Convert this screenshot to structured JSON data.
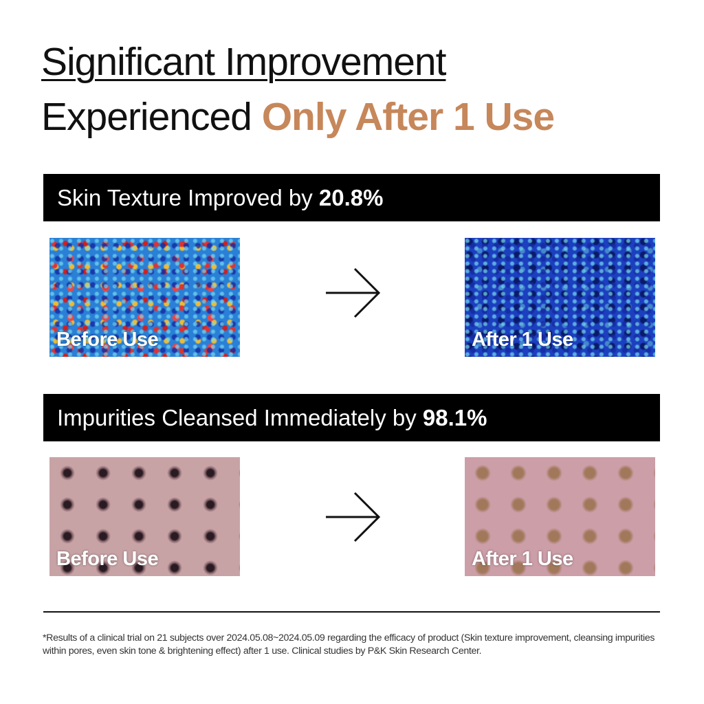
{
  "headline": {
    "line1": "Significant Improvement",
    "line2_prefix": "Experienced ",
    "line2_accent": "Only After 1 Use",
    "accent_color": "#c6875a"
  },
  "sections": [
    {
      "banner_text": "Skin Texture Improved by ",
      "banner_value": "20.8%",
      "before_label": "Before Use",
      "after_label": "After 1 Use",
      "arrow_icon": "arrow-right-icon"
    },
    {
      "banner_text": "Impurities Cleansed Immediately by ",
      "banner_value": "98.1%",
      "before_label": "Before Use",
      "after_label": "After 1 Use",
      "arrow_icon": "arrow-right-icon"
    }
  ],
  "footnote": "*Results of a clinical trial on 21 subjects over 2024.05.08~2024.05.09 regarding the efficacy of product (Skin texture improvement, cleansing impurities within pores, even skin tone & brightening effect) after 1 use. Clinical studies by P&K Skin Research Center."
}
